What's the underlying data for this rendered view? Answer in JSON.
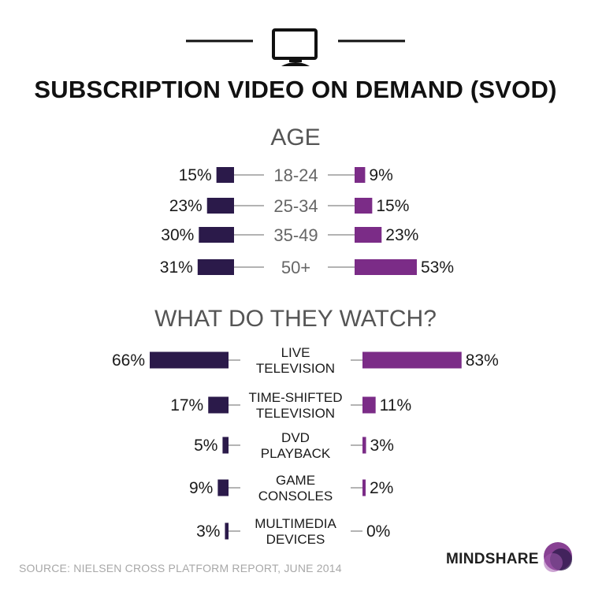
{
  "title": "SUBSCRIPTION VIDEO ON DEMAND (SVOD)",
  "header_icon": "tv-monitor-icon",
  "colors": {
    "left_bar": "#2b1a4a",
    "right_bar": "#7b2c87",
    "connector": "#9a9a9a",
    "heading": "#555555",
    "source": "#a8a8a8"
  },
  "chart_data": [
    {
      "type": "bar",
      "orientation": "diverging-horizontal",
      "title": "AGE",
      "categories": [
        "18-24",
        "25-34",
        "35-49",
        "50+"
      ],
      "series": [
        {
          "values": [
            15,
            23,
            30,
            31
          ],
          "labels": [
            "15%",
            "23%",
            "30%",
            "31%"
          ]
        },
        {
          "values": [
            9,
            15,
            23,
            53
          ],
          "labels": [
            "9%",
            "15%",
            "23%",
            "53%"
          ]
        }
      ]
    },
    {
      "type": "bar",
      "orientation": "diverging-horizontal",
      "title": "WHAT DO THEY WATCH?",
      "categories": [
        [
          "LIVE",
          "TELEVISION"
        ],
        [
          "TIME-SHIFTED",
          "TELEVISION"
        ],
        [
          "DVD",
          "PLAYBACK"
        ],
        [
          "GAME",
          "CONSOLES"
        ],
        [
          "MULTIMEDIA",
          "DEVICES"
        ]
      ],
      "series": [
        {
          "values": [
            66,
            17,
            5,
            9,
            3
          ],
          "labels": [
            "66%",
            "17%",
            "5%",
            "9%",
            "3%"
          ]
        },
        {
          "values": [
            83,
            11,
            3,
            2,
            0
          ],
          "labels": [
            "83%",
            "11%",
            "3%",
            "2%",
            "0%"
          ]
        }
      ]
    }
  ],
  "footer": {
    "source": "SOURCE: NIELSEN CROSS PLATFORM REPORT, JUNE 2014"
  },
  "logo": {
    "text": "MINDSHARE",
    "icon": "mindshare-logo-mark"
  }
}
